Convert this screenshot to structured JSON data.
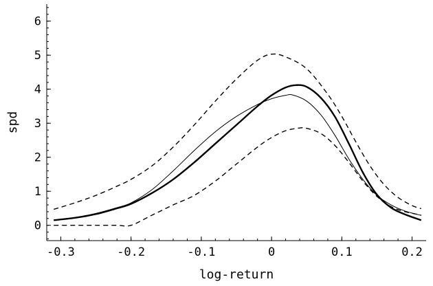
{
  "chart_data": {
    "type": "line",
    "xlabel": "log-return",
    "ylabel": "spd",
    "xlim": [
      -0.32,
      0.22
    ],
    "ylim": [
      -0.45,
      6.5
    ],
    "x_ticks": [
      {
        "value": -0.3,
        "label": "-0.3"
      },
      {
        "value": -0.2,
        "label": "-0.2"
      },
      {
        "value": -0.1,
        "label": "-0.1"
      },
      {
        "value": 0,
        "label": "0"
      },
      {
        "value": 0.1,
        "label": "0.1"
      },
      {
        "value": 0.2,
        "label": "0.2"
      }
    ],
    "y_ticks": [
      {
        "value": 0,
        "label": "0"
      },
      {
        "value": 1,
        "label": "1"
      },
      {
        "value": 2,
        "label": "2"
      },
      {
        "value": 3,
        "label": "3"
      },
      {
        "value": 4,
        "label": "4"
      },
      {
        "value": 5,
        "label": "5"
      },
      {
        "value": 6,
        "label": "6"
      }
    ],
    "grid": false,
    "series": [
      {
        "style": "dashed",
        "x": [
          -0.31,
          -0.28,
          -0.25,
          -0.22,
          -0.2,
          -0.17,
          -0.14,
          -0.11,
          -0.08,
          -0.05,
          -0.02,
          0.0,
          0.02,
          0.05,
          0.08,
          0.1,
          0.12,
          0.14,
          0.16,
          0.18,
          0.2,
          0.213
        ],
        "y": [
          0.47,
          0.66,
          0.88,
          1.15,
          1.35,
          1.75,
          2.3,
          2.95,
          3.65,
          4.3,
          4.85,
          5.03,
          4.95,
          4.6,
          3.85,
          3.2,
          2.45,
          1.75,
          1.2,
          0.82,
          0.58,
          0.49
        ]
      },
      {
        "style": "dashed",
        "x": [
          -0.31,
          -0.28,
          -0.25,
          -0.22,
          -0.2,
          -0.17,
          -0.14,
          -0.11,
          -0.08,
          -0.05,
          -0.02,
          0.0,
          0.02,
          0.04,
          0.05,
          0.07,
          0.09,
          0.11,
          0.13,
          0.15,
          0.17,
          0.19,
          0.213
        ],
        "y": [
          0.0,
          0.0,
          0.0,
          0.0,
          0.0,
          0.3,
          0.6,
          0.88,
          1.3,
          1.8,
          2.3,
          2.58,
          2.78,
          2.86,
          2.85,
          2.7,
          2.35,
          1.85,
          1.3,
          0.85,
          0.55,
          0.4,
          0.3
        ]
      },
      {
        "style": "thick",
        "x": [
          -0.31,
          -0.28,
          -0.25,
          -0.22,
          -0.2,
          -0.17,
          -0.14,
          -0.11,
          -0.08,
          -0.05,
          -0.02,
          0.0,
          0.02,
          0.035,
          0.05,
          0.07,
          0.09,
          0.11,
          0.13,
          0.15,
          0.17,
          0.19,
          0.213
        ],
        "y": [
          0.15,
          0.22,
          0.33,
          0.5,
          0.63,
          0.95,
          1.35,
          1.85,
          2.4,
          2.95,
          3.5,
          3.82,
          4.05,
          4.12,
          4.07,
          3.75,
          3.2,
          2.4,
          1.55,
          0.9,
          0.52,
          0.32,
          0.15
        ]
      },
      {
        "style": "thin",
        "x": [
          -0.31,
          -0.28,
          -0.25,
          -0.22,
          -0.2,
          -0.17,
          -0.14,
          -0.11,
          -0.08,
          -0.05,
          -0.02,
          0.0,
          0.02,
          0.03,
          0.05,
          0.07,
          0.09,
          0.11,
          0.13,
          0.15,
          0.17,
          0.19,
          0.213
        ],
        "y": [
          0.15,
          0.23,
          0.35,
          0.52,
          0.66,
          1.05,
          1.6,
          2.2,
          2.75,
          3.2,
          3.55,
          3.72,
          3.82,
          3.83,
          3.65,
          3.25,
          2.65,
          1.95,
          1.35,
          0.88,
          0.6,
          0.42,
          0.29
        ]
      }
    ]
  }
}
